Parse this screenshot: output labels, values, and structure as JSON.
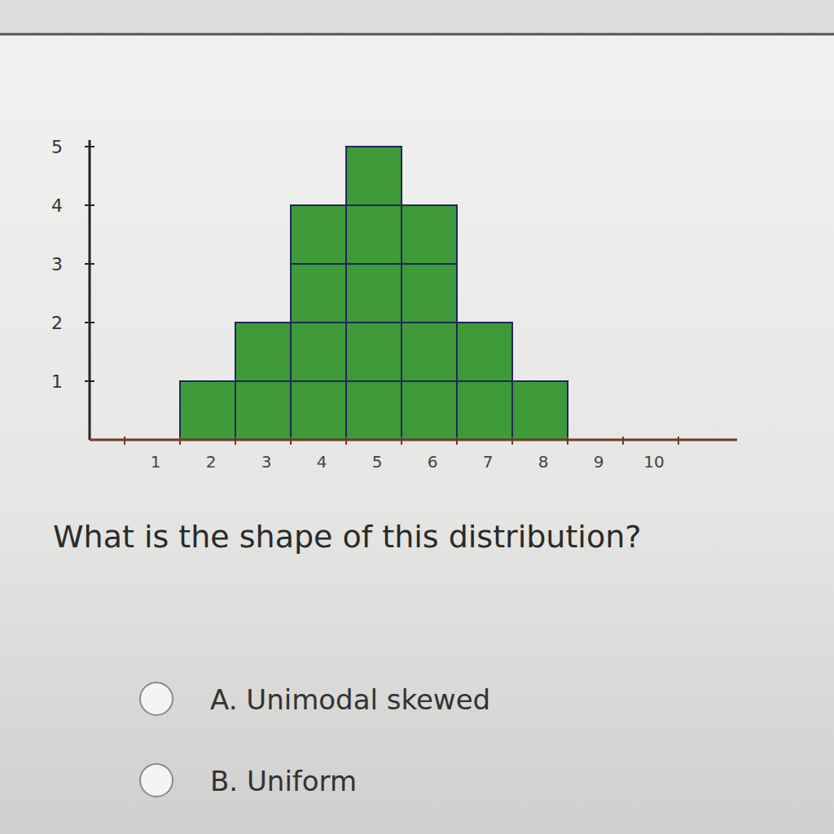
{
  "chart_data": {
    "type": "bar",
    "title": "What is the shape of this distribution?",
    "categories": [
      "1",
      "2",
      "3",
      "4",
      "5",
      "6",
      "7",
      "8",
      "9",
      "10"
    ],
    "values": [
      0,
      1,
      2,
      4,
      5,
      4,
      2,
      1,
      0,
      0
    ],
    "color": "#3f9a3a",
    "ylim": [
      0,
      5
    ],
    "yticks": [
      1,
      2,
      3,
      4,
      5
    ],
    "grid": false,
    "annotations": [
      "A. Unimodal skewed",
      "B. Uniform"
    ]
  }
}
